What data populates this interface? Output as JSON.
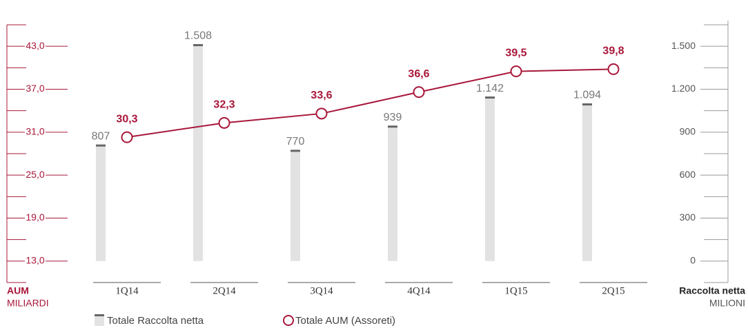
{
  "chart_data": {
    "type": "combo",
    "categories": [
      "1Q14",
      "2Q14",
      "3Q14",
      "4Q14",
      "1Q15",
      "2Q15"
    ],
    "series": [
      {
        "name": "Totale Raccolta netta",
        "type": "bar",
        "axis": "y2",
        "color": "#e2e2e2",
        "cap_color": "#666666",
        "values": [
          807,
          1508,
          770,
          939,
          1142,
          1094
        ],
        "value_labels": [
          "807",
          "1.508",
          "770",
          "939",
          "1.142",
          "1.094"
        ]
      },
      {
        "name": "Totale AUM (Assoreti)",
        "type": "line",
        "axis": "y",
        "color": "#a8173a",
        "values": [
          30.3,
          32.3,
          33.6,
          36.6,
          39.5,
          39.8
        ],
        "value_labels": [
          "30,3",
          "32,3",
          "33,6",
          "36,6",
          "39,5",
          "39,8"
        ]
      }
    ],
    "y_title": "AUM",
    "y_subtitle": "MILIARDI",
    "y2_title": "Raccolta netta",
    "y2_subtitle": "MILIONI",
    "ylim": [
      10,
      46
    ],
    "yticks": [
      {
        "value": 13,
        "label": "13,0"
      },
      {
        "value": 19,
        "label": "19,0"
      },
      {
        "value": 25,
        "label": "25,0"
      },
      {
        "value": 31,
        "label": "31,0"
      },
      {
        "value": 37,
        "label": "37,0"
      },
      {
        "value": 43,
        "label": "43,0"
      }
    ],
    "yminor": [
      10,
      16,
      22,
      28,
      34,
      40,
      46
    ],
    "y2lim": [
      -150,
      1650
    ],
    "y2ticks": [
      0,
      300,
      600,
      900,
      {
        "value": 1200,
        "label": "1.200"
      },
      {
        "value": 1500,
        "label": "1.500"
      }
    ],
    "y2minor": [
      -150,
      150,
      450,
      750,
      1050,
      1350,
      1650
    ]
  }
}
